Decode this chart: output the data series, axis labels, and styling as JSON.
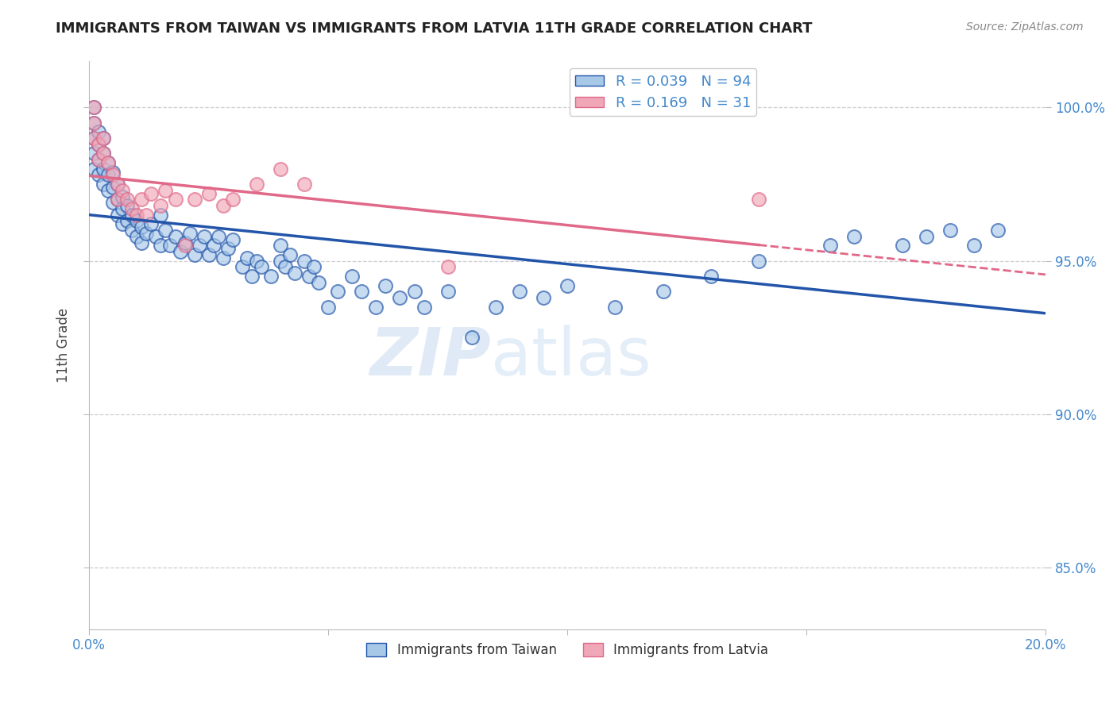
{
  "title": "IMMIGRANTS FROM TAIWAN VS IMMIGRANTS FROM LATVIA 11TH GRADE CORRELATION CHART",
  "source_text": "Source: ZipAtlas.com",
  "ylabel": "11th Grade",
  "x_min": 0.0,
  "x_max": 0.2,
  "y_min": 83.0,
  "y_max": 101.5,
  "x_ticks": [
    0.0,
    0.05,
    0.1,
    0.15,
    0.2
  ],
  "x_tick_labels": [
    "0.0%",
    "",
    "",
    "",
    "20.0%"
  ],
  "y_ticks": [
    85.0,
    90.0,
    95.0,
    100.0
  ],
  "y_tick_labels": [
    "85.0%",
    "90.0%",
    "95.0%",
    "100.0%"
  ],
  "taiwan_R": 0.039,
  "taiwan_N": 94,
  "latvia_R": 0.169,
  "latvia_N": 31,
  "taiwan_color": "#a8c8e8",
  "latvia_color": "#f0a8b8",
  "taiwan_line_color": "#2255aa",
  "latvia_line_color": "#e06888",
  "taiwan_x": [
    0.001,
    0.001,
    0.001,
    0.001,
    0.001,
    0.002,
    0.002,
    0.002,
    0.002,
    0.003,
    0.003,
    0.003,
    0.003,
    0.004,
    0.004,
    0.004,
    0.005,
    0.005,
    0.005,
    0.006,
    0.006,
    0.006,
    0.007,
    0.007,
    0.007,
    0.008,
    0.008,
    0.009,
    0.009,
    0.01,
    0.01,
    0.011,
    0.011,
    0.012,
    0.013,
    0.014,
    0.015,
    0.015,
    0.016,
    0.017,
    0.018,
    0.019,
    0.02,
    0.021,
    0.022,
    0.023,
    0.024,
    0.025,
    0.026,
    0.027,
    0.028,
    0.029,
    0.03,
    0.032,
    0.033,
    0.034,
    0.035,
    0.036,
    0.038,
    0.04,
    0.04,
    0.041,
    0.042,
    0.043,
    0.045,
    0.046,
    0.047,
    0.048,
    0.05,
    0.052,
    0.055,
    0.057,
    0.06,
    0.062,
    0.065,
    0.068,
    0.07,
    0.075,
    0.08,
    0.085,
    0.09,
    0.095,
    0.1,
    0.11,
    0.12,
    0.13,
    0.14,
    0.155,
    0.16,
    0.17,
    0.175,
    0.18,
    0.185,
    0.19
  ],
  "taiwan_y": [
    100.0,
    99.5,
    99.0,
    98.5,
    98.0,
    99.2,
    98.8,
    98.3,
    97.8,
    99.0,
    98.5,
    98.0,
    97.5,
    98.2,
    97.8,
    97.3,
    97.9,
    97.4,
    96.9,
    97.5,
    97.0,
    96.5,
    97.1,
    96.7,
    96.2,
    96.8,
    96.3,
    96.5,
    96.0,
    96.3,
    95.8,
    96.1,
    95.6,
    95.9,
    96.2,
    95.8,
    96.5,
    95.5,
    96.0,
    95.5,
    95.8,
    95.3,
    95.6,
    95.9,
    95.2,
    95.5,
    95.8,
    95.2,
    95.5,
    95.8,
    95.1,
    95.4,
    95.7,
    94.8,
    95.1,
    94.5,
    95.0,
    94.8,
    94.5,
    95.5,
    95.0,
    94.8,
    95.2,
    94.6,
    95.0,
    94.5,
    94.8,
    94.3,
    93.5,
    94.0,
    94.5,
    94.0,
    93.5,
    94.2,
    93.8,
    94.0,
    93.5,
    94.0,
    92.5,
    93.5,
    94.0,
    93.8,
    94.2,
    93.5,
    94.0,
    94.5,
    95.0,
    95.5,
    95.8,
    95.5,
    95.8,
    96.0,
    95.5,
    96.0
  ],
  "latvia_x": [
    0.001,
    0.001,
    0.001,
    0.002,
    0.002,
    0.003,
    0.003,
    0.004,
    0.005,
    0.006,
    0.006,
    0.007,
    0.008,
    0.009,
    0.01,
    0.011,
    0.012,
    0.013,
    0.015,
    0.016,
    0.018,
    0.02,
    0.022,
    0.025,
    0.028,
    0.03,
    0.035,
    0.04,
    0.045,
    0.075,
    0.14
  ],
  "latvia_y": [
    100.0,
    99.5,
    99.0,
    98.8,
    98.3,
    99.0,
    98.5,
    98.2,
    97.8,
    97.5,
    97.0,
    97.3,
    97.0,
    96.7,
    96.5,
    97.0,
    96.5,
    97.2,
    96.8,
    97.3,
    97.0,
    95.5,
    97.0,
    97.2,
    96.8,
    97.0,
    97.5,
    98.0,
    97.5,
    94.8,
    97.0
  ],
  "watermark_left": "ZIP",
  "watermark_right": "atlas",
  "background_color": "#ffffff",
  "grid_color": "#c8c8d0",
  "title_color": "#222222",
  "tick_label_color": "#4488cc",
  "ylabel_color": "#444444"
}
